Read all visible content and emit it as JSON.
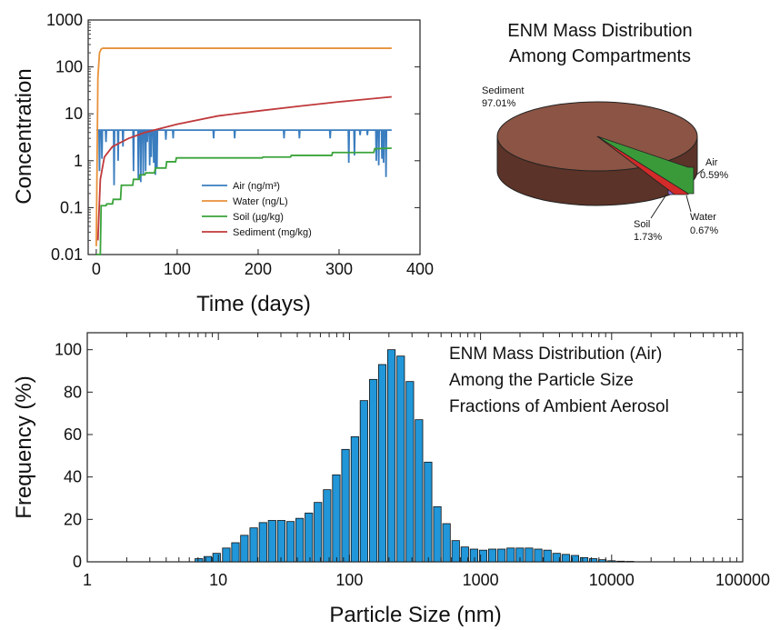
{
  "chart_data": [
    {
      "type": "line",
      "xlabel": "Time (days)",
      "ylabel": "Concentration",
      "x_ticks": [
        0,
        100,
        200,
        300,
        400
      ],
      "y_ticks": [
        "0.01",
        "0.1",
        "1",
        "10",
        "100",
        "1000"
      ],
      "xlim": [
        -10,
        400
      ],
      "ylim": [
        0.01,
        1000
      ],
      "y_scale": "log",
      "legend_position": "lower-middle",
      "series": [
        {
          "name": "Air (ng/m³)",
          "color": "#3a7dbf",
          "baseline": 4.5,
          "x": [
            0,
            365
          ],
          "y": [
            4.5,
            4.5
          ],
          "dips": [
            [
              4,
              0.6
            ],
            [
              7,
              1.1
            ],
            [
              12,
              2.5
            ],
            [
              22,
              0.3
            ],
            [
              27,
              1.0
            ],
            [
              33,
              2.0
            ],
            [
              46,
              0.6
            ],
            [
              52,
              0.4
            ],
            [
              55,
              0.35
            ],
            [
              58,
              0.5
            ],
            [
              61,
              0.6
            ],
            [
              63,
              2.5
            ],
            [
              66,
              0.8
            ],
            [
              68,
              1.2
            ],
            [
              71,
              0.9
            ],
            [
              73,
              0.5
            ],
            [
              75,
              0.7
            ],
            [
              86,
              2.8
            ],
            [
              95,
              3.0
            ],
            [
              145,
              3.0
            ],
            [
              171,
              3.0
            ],
            [
              232,
              3.0
            ],
            [
              251,
              3.0
            ],
            [
              289,
              3.0
            ],
            [
              312,
              0.9
            ],
            [
              319,
              1.3
            ],
            [
              326,
              3.5
            ],
            [
              335,
              3.5
            ],
            [
              346,
              1.0
            ],
            [
              349,
              0.8
            ],
            [
              353,
              1.1
            ],
            [
              355,
              0.9
            ],
            [
              358,
              0.45
            ]
          ]
        },
        {
          "name": "Water (ng/L)",
          "color": "#e8913a",
          "x": [
            0,
            2,
            4,
            6,
            8,
            365
          ],
          "y": [
            0.015,
            60,
            200,
            240,
            250,
            250
          ]
        },
        {
          "name": "Soil (µg/kg)",
          "color": "#3aa33a",
          "x": [
            0,
            5,
            6,
            12,
            13,
            20,
            21,
            30,
            31,
            45,
            46,
            53,
            54,
            60,
            61,
            72,
            73,
            86,
            87,
            98,
            99,
            205,
            206,
            240,
            241,
            291,
            292,
            343,
            344,
            365
          ],
          "y": [
            0.01,
            0.01,
            0.11,
            0.11,
            0.12,
            0.12,
            0.15,
            0.15,
            0.3,
            0.3,
            0.4,
            0.4,
            0.5,
            0.5,
            0.55,
            0.55,
            0.7,
            0.7,
            0.95,
            0.95,
            1.15,
            1.15,
            1.2,
            1.2,
            1.3,
            1.3,
            1.5,
            1.5,
            1.8,
            1.85
          ]
        },
        {
          "name": "Sediment (mg/kg)",
          "color": "#c0393b",
          "x": [
            2,
            5,
            10,
            20,
            40,
            60,
            100,
            150,
            200,
            250,
            300,
            365
          ],
          "y": [
            0.02,
            0.4,
            1.2,
            2.0,
            3.0,
            4.0,
            6.0,
            9.0,
            11.5,
            14.5,
            18,
            23
          ]
        }
      ]
    },
    {
      "type": "pie",
      "title_lines": [
        "ENM Mass Distribution",
        "Among Compartments"
      ],
      "slices": [
        {
          "label": "Sediment",
          "value_label": "97.01%",
          "value": 97.01,
          "color": "#8b5444"
        },
        {
          "label": "Air",
          "value_label": "0.59%",
          "value": 0.59,
          "color": "#3a9a3a"
        },
        {
          "label": "Water",
          "value_label": "0.67%",
          "value": 0.67,
          "color": "#d32a2a"
        },
        {
          "label": "Soil",
          "value_label": "1.73%",
          "value": 1.73,
          "color": "#9b6fd6"
        }
      ]
    },
    {
      "type": "bar",
      "title_lines": [
        "ENM Mass Distribution (Air)",
        "Among the Particle Size",
        "Fractions of Ambient Aerosol"
      ],
      "xlabel": "Particle Size (nm)",
      "ylabel": "Frequency (%)",
      "x_scale": "log",
      "xlim": [
        1,
        100000
      ],
      "ylim": [
        0,
        108
      ],
      "x_ticks": [
        "1",
        "10",
        "100",
        "1000",
        "10000",
        "100000"
      ],
      "y_ticks": [
        "0",
        "20",
        "40",
        "60",
        "80",
        "100"
      ],
      "bar_color": "#2196d8",
      "x": [
        7.1,
        8.3,
        9.7,
        11.5,
        13.5,
        15.8,
        18.6,
        21.9,
        25.7,
        30.2,
        35.5,
        41.7,
        49,
        57.5,
        67.6,
        79.4,
        93.3,
        110,
        129,
        152,
        178,
        209,
        246,
        289,
        339,
        398,
        468,
        550,
        646,
        759,
        891,
        1047,
        1230,
        1445,
        1698,
        1995,
        2344,
        2754,
        3236,
        3802,
        4467,
        5248,
        6166,
        7244,
        8511,
        10000,
        11750,
        13800
      ],
      "values": [
        1.5,
        2.5,
        4,
        6.5,
        9,
        12.5,
        16,
        18.5,
        19.5,
        19.5,
        19,
        20.5,
        23,
        28,
        34,
        41,
        53,
        59,
        76,
        86,
        93,
        100,
        97,
        85,
        67,
        47,
        26,
        18,
        10,
        7,
        6,
        5.5,
        6,
        6,
        6.5,
        6.5,
        6.5,
        6,
        5.5,
        4,
        3.5,
        3,
        2,
        1.5,
        1,
        0.5,
        0.3,
        0.2
      ]
    }
  ]
}
